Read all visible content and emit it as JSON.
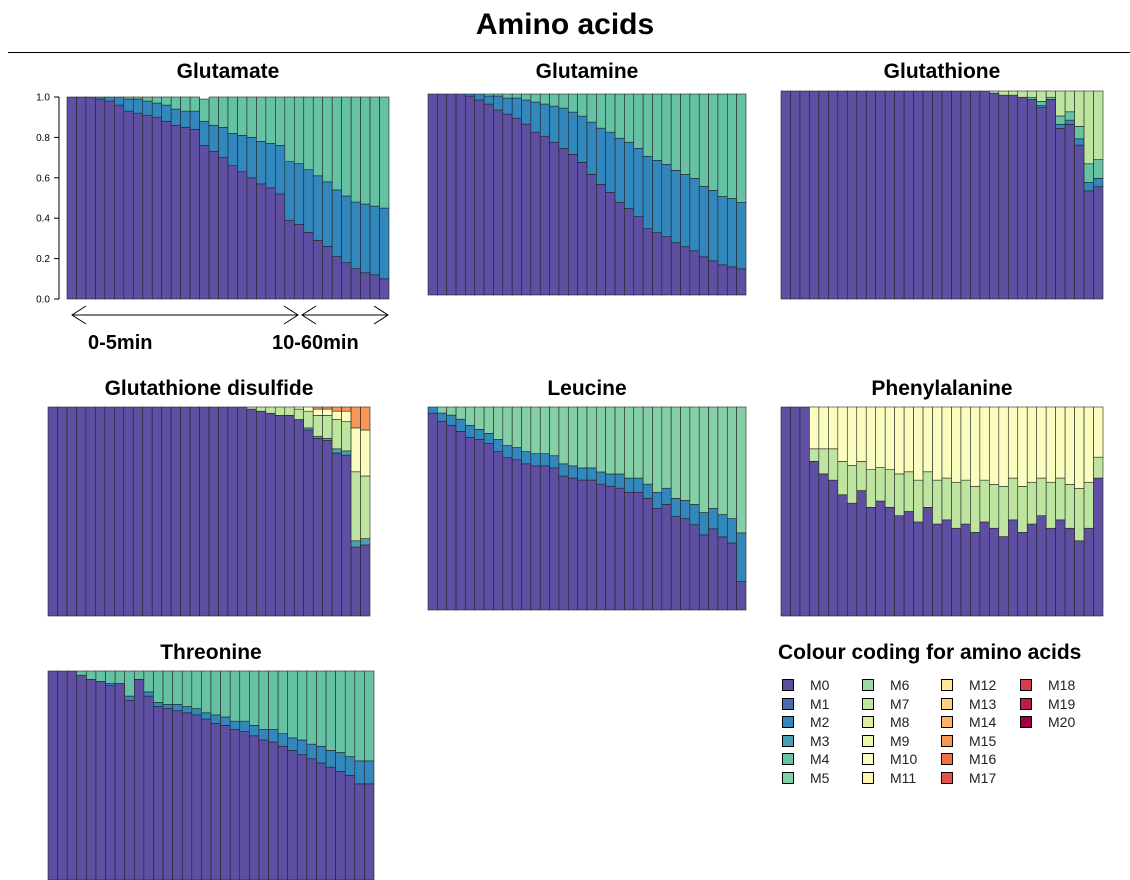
{
  "title": "Amino acids",
  "colors": {
    "M0": "#5e4fa2",
    "M1": "#4b6bb0",
    "M2": "#3288bd",
    "M3": "#489fb2",
    "M4": "#66c2a5",
    "M5": "#84cfa5",
    "M6": "#a0d8a4",
    "M7": "#bee5a0",
    "M8": "#dcf09e",
    "M9": "#eef8a7",
    "M10": "#fbfdbf",
    "M11": "#fff4b3",
    "M12": "#fee695",
    "M13": "#fdd07e",
    "M14": "#fdb466",
    "M15": "#f99653",
    "M16": "#f46d43",
    "M17": "#e5524a",
    "M18": "#d53e4f",
    "M19": "#b8204b",
    "M20": "#9e0142"
  },
  "annotations": {
    "period_1": "0-5min",
    "period_2": "10-60min"
  },
  "legend": {
    "title": "Colour coding for amino acids",
    "items": [
      "M0",
      "M1",
      "M2",
      "M3",
      "M4",
      "M5",
      "M6",
      "M7",
      "M8",
      "M9",
      "M10",
      "M11",
      "M12",
      "M13",
      "M14",
      "M15",
      "M16",
      "M17",
      "M18",
      "M19",
      "M20"
    ]
  },
  "chart_data": [
    {
      "type": "bar",
      "stacked": true,
      "title": "Glutamate",
      "ylim": [
        0,
        1
      ],
      "yticks": [
        "0.0",
        "0.2",
        "0.4",
        "0.6",
        "0.8",
        "1.0"
      ],
      "n_bars": 34,
      "series": [
        {
          "name": "M0",
          "values": [
            1,
            1,
            1,
            0.99,
            0.98,
            0.96,
            0.93,
            0.92,
            0.91,
            0.9,
            0.88,
            0.86,
            0.85,
            0.84,
            0.76,
            0.73,
            0.7,
            0.66,
            0.63,
            0.6,
            0.57,
            0.55,
            0.52,
            0.39,
            0.37,
            0.33,
            0.29,
            0.26,
            0.21,
            0.18,
            0.15,
            0.13,
            0.12,
            0.1
          ]
        },
        {
          "name": "M2",
          "values": [
            0,
            0,
            0,
            0.01,
            0.02,
            0.04,
            0.06,
            0.07,
            0.07,
            0.07,
            0.08,
            0.08,
            0.08,
            0.09,
            0.12,
            0.13,
            0.15,
            0.16,
            0.18,
            0.2,
            0.21,
            0.22,
            0.24,
            0.29,
            0.3,
            0.31,
            0.32,
            0.32,
            0.33,
            0.33,
            0.33,
            0.34,
            0.34,
            0.35
          ]
        },
        {
          "name": "M4",
          "values": [
            0,
            0,
            0,
            0,
            0,
            0,
            0.01,
            0.01,
            0.02,
            0.03,
            0.04,
            0.06,
            0.07,
            0.07,
            0.11,
            0.14,
            0.15,
            0.18,
            0.19,
            0.2,
            0.22,
            0.23,
            0.24,
            0.32,
            0.33,
            0.36,
            0.39,
            0.42,
            0.46,
            0.49,
            0.52,
            0.53,
            0.54,
            0.55
          ]
        }
      ]
    },
    {
      "type": "bar",
      "stacked": true,
      "title": "Glutamine",
      "n_bars": 34,
      "series": [
        {
          "name": "M0",
          "values": [
            1,
            1,
            1,
            1,
            0.99,
            0.97,
            0.95,
            0.92,
            0.9,
            0.88,
            0.85,
            0.81,
            0.79,
            0.76,
            0.73,
            0.7,
            0.66,
            0.6,
            0.55,
            0.51,
            0.46,
            0.43,
            0.39,
            0.33,
            0.31,
            0.29,
            0.26,
            0.24,
            0.22,
            0.19,
            0.17,
            0.15,
            0.14,
            0.13
          ]
        },
        {
          "name": "M2",
          "values": [
            0,
            0,
            0,
            0,
            0.01,
            0.03,
            0.04,
            0.07,
            0.08,
            0.1,
            0.12,
            0.15,
            0.16,
            0.18,
            0.2,
            0.21,
            0.23,
            0.26,
            0.28,
            0.3,
            0.32,
            0.33,
            0.34,
            0.36,
            0.36,
            0.36,
            0.36,
            0.36,
            0.36,
            0.35,
            0.35,
            0.34,
            0.34,
            0.33
          ]
        },
        {
          "name": "M4",
          "values": [
            0,
            0,
            0,
            0,
            0,
            0,
            0.01,
            0.01,
            0.02,
            0.02,
            0.03,
            0.04,
            0.05,
            0.06,
            0.07,
            0.09,
            0.11,
            0.14,
            0.17,
            0.19,
            0.22,
            0.24,
            0.27,
            0.31,
            0.33,
            0.35,
            0.38,
            0.4,
            0.42,
            0.46,
            0.48,
            0.51,
            0.52,
            0.54
          ]
        }
      ]
    },
    {
      "type": "bar",
      "stacked": true,
      "title": "Glutathione",
      "n_bars": 34,
      "series": [
        {
          "name": "M0",
          "values": [
            1,
            1,
            1,
            1,
            1,
            1,
            1,
            1,
            1,
            1,
            1,
            1,
            1,
            1,
            1,
            1,
            1,
            1,
            1,
            1,
            1,
            1,
            0.99,
            0.98,
            0.98,
            0.97,
            0.96,
            0.92,
            0.96,
            0.82,
            0.84,
            0.74,
            0.52,
            0.54
          ]
        },
        {
          "name": "M2",
          "values": [
            0,
            0,
            0,
            0,
            0,
            0,
            0,
            0,
            0,
            0,
            0,
            0,
            0,
            0,
            0,
            0,
            0,
            0,
            0,
            0,
            0,
            0,
            0,
            0,
            0,
            0,
            0,
            0.01,
            0,
            0.02,
            0.02,
            0.03,
            0.04,
            0.04
          ]
        },
        {
          "name": "M4",
          "values": [
            0,
            0,
            0,
            0,
            0,
            0,
            0,
            0,
            0,
            0,
            0,
            0,
            0,
            0,
            0,
            0,
            0,
            0,
            0,
            0,
            0,
            0,
            0,
            0,
            0,
            0,
            0.01,
            0.02,
            0.01,
            0.04,
            0.04,
            0.06,
            0.09,
            0.09
          ]
        },
        {
          "name": "M7",
          "values": [
            0,
            0,
            0,
            0,
            0,
            0,
            0,
            0,
            0,
            0,
            0,
            0,
            0,
            0,
            0,
            0,
            0,
            0,
            0,
            0,
            0,
            0,
            0.01,
            0.02,
            0.02,
            0.03,
            0.03,
            0.05,
            0.03,
            0.12,
            0.1,
            0.17,
            0.35,
            0.33
          ]
        }
      ]
    },
    {
      "type": "bar",
      "stacked": true,
      "title": "Glutathione disulfide",
      "n_bars": 34,
      "series": [
        {
          "name": "M0",
          "values": [
            1,
            1,
            1,
            1,
            1,
            1,
            1,
            1,
            1,
            1,
            1,
            1,
            1,
            1,
            1,
            1,
            1,
            1,
            1,
            1,
            1,
            0.99,
            0.98,
            0.97,
            0.96,
            0.96,
            0.94,
            0.89,
            0.85,
            0.84,
            0.78,
            0.77,
            0.33,
            0.34
          ]
        },
        {
          "name": "M3",
          "values": [
            0,
            0,
            0,
            0,
            0,
            0,
            0,
            0,
            0,
            0,
            0,
            0,
            0,
            0,
            0,
            0,
            0,
            0,
            0,
            0,
            0,
            0,
            0,
            0,
            0,
            0,
            0,
            0.01,
            0.01,
            0.01,
            0.02,
            0.02,
            0.03,
            0.03
          ]
        },
        {
          "name": "M7",
          "values": [
            0,
            0,
            0,
            0,
            0,
            0,
            0,
            0,
            0,
            0,
            0,
            0,
            0,
            0,
            0,
            0,
            0,
            0,
            0,
            0,
            0,
            0.01,
            0.02,
            0.03,
            0.04,
            0.04,
            0.05,
            0.08,
            0.1,
            0.11,
            0.14,
            0.14,
            0.33,
            0.3
          ]
        },
        {
          "name": "M10",
          "values": [
            0,
            0,
            0,
            0,
            0,
            0,
            0,
            0,
            0,
            0,
            0,
            0,
            0,
            0,
            0,
            0,
            0,
            0,
            0,
            0,
            0,
            0,
            0,
            0,
            0,
            0,
            0.01,
            0.02,
            0.03,
            0.03,
            0.04,
            0.05,
            0.21,
            0.22
          ]
        },
        {
          "name": "M15",
          "values": [
            0,
            0,
            0,
            0,
            0,
            0,
            0,
            0,
            0,
            0,
            0,
            0,
            0,
            0,
            0,
            0,
            0,
            0,
            0,
            0,
            0,
            0,
            0,
            0,
            0,
            0,
            0,
            0,
            0.01,
            0.01,
            0.02,
            0.02,
            0.1,
            0.11
          ]
        }
      ]
    },
    {
      "type": "bar",
      "stacked": true,
      "title": "Leucine",
      "n_bars": 34,
      "series": [
        {
          "name": "M0",
          "values": [
            0.97,
            0.93,
            0.91,
            0.88,
            0.85,
            0.84,
            0.82,
            0.78,
            0.75,
            0.74,
            0.72,
            0.71,
            0.71,
            0.7,
            0.66,
            0.65,
            0.64,
            0.64,
            0.62,
            0.61,
            0.6,
            0.58,
            0.58,
            0.55,
            0.5,
            0.52,
            0.46,
            0.45,
            0.42,
            0.37,
            0.4,
            0.36,
            0.33,
            0.14
          ]
        },
        {
          "name": "M2",
          "values": [
            0.03,
            0.04,
            0.05,
            0.06,
            0.06,
            0.05,
            0.05,
            0.06,
            0.06,
            0.06,
            0.06,
            0.06,
            0.06,
            0.06,
            0.06,
            0.06,
            0.06,
            0.06,
            0.06,
            0.06,
            0.07,
            0.07,
            0.07,
            0.07,
            0.08,
            0.08,
            0.09,
            0.09,
            0.1,
            0.11,
            0.1,
            0.11,
            0.12,
            0.24
          ]
        },
        {
          "name": "M5",
          "values": [
            0,
            0.03,
            0.04,
            0.06,
            0.09,
            0.11,
            0.13,
            0.16,
            0.19,
            0.2,
            0.22,
            0.23,
            0.23,
            0.24,
            0.28,
            0.29,
            0.3,
            0.3,
            0.32,
            0.33,
            0.33,
            0.35,
            0.35,
            0.38,
            0.42,
            0.4,
            0.45,
            0.46,
            0.48,
            0.52,
            0.5,
            0.53,
            0.55,
            0.62
          ]
        }
      ]
    },
    {
      "type": "bar",
      "stacked": true,
      "title": "Phenylalanine",
      "n_bars": 34,
      "series": [
        {
          "name": "M0",
          "values": [
            1,
            1,
            1,
            0.74,
            0.68,
            0.65,
            0.58,
            0.54,
            0.6,
            0.52,
            0.55,
            0.52,
            0.48,
            0.5,
            0.45,
            0.52,
            0.44,
            0.46,
            0.42,
            0.44,
            0.4,
            0.45,
            0.42,
            0.38,
            0.46,
            0.4,
            0.44,
            0.48,
            0.42,
            0.46,
            0.42,
            0.36,
            0.42,
            0.66
          ]
        },
        {
          "name": "M7",
          "values": [
            0,
            0,
            0,
            0.06,
            0.12,
            0.15,
            0.16,
            0.18,
            0.14,
            0.18,
            0.16,
            0.18,
            0.2,
            0.19,
            0.2,
            0.17,
            0.21,
            0.2,
            0.22,
            0.21,
            0.22,
            0.2,
            0.21,
            0.24,
            0.2,
            0.22,
            0.2,
            0.18,
            0.22,
            0.2,
            0.21,
            0.25,
            0.22,
            0.1
          ]
        },
        {
          "name": "M10",
          "values": [
            0,
            0,
            0,
            0.2,
            0.2,
            0.2,
            0.26,
            0.28,
            0.26,
            0.3,
            0.29,
            0.3,
            0.32,
            0.31,
            0.35,
            0.31,
            0.35,
            0.34,
            0.36,
            0.35,
            0.38,
            0.35,
            0.37,
            0.38,
            0.34,
            0.38,
            0.36,
            0.34,
            0.36,
            0.34,
            0.37,
            0.39,
            0.36,
            0.24
          ]
        }
      ]
    },
    {
      "type": "bar",
      "stacked": true,
      "title": "Threonine",
      "n_bars": 34,
      "series": [
        {
          "name": "M0",
          "values": [
            1,
            1,
            1,
            0.98,
            0.96,
            0.95,
            0.93,
            0.94,
            0.86,
            0.96,
            0.88,
            0.83,
            0.82,
            0.81,
            0.8,
            0.79,
            0.77,
            0.75,
            0.74,
            0.72,
            0.71,
            0.69,
            0.67,
            0.66,
            0.64,
            0.62,
            0.6,
            0.58,
            0.56,
            0.54,
            0.52,
            0.5,
            0.46,
            0.46
          ]
        },
        {
          "name": "M2",
          "values": [
            0,
            0,
            0,
            0,
            0,
            0,
            0.01,
            0,
            0.02,
            0,
            0.02,
            0.02,
            0.02,
            0.03,
            0.03,
            0.03,
            0.03,
            0.04,
            0.04,
            0.04,
            0.05,
            0.05,
            0.05,
            0.06,
            0.06,
            0.06,
            0.07,
            0.07,
            0.08,
            0.08,
            0.09,
            0.09,
            0.11,
            0.11
          ]
        },
        {
          "name": "M4",
          "values": [
            0,
            0,
            0,
            0.02,
            0.04,
            0.05,
            0.06,
            0.06,
            0.12,
            0.04,
            0.1,
            0.15,
            0.16,
            0.16,
            0.17,
            0.18,
            0.2,
            0.21,
            0.22,
            0.24,
            0.24,
            0.26,
            0.28,
            0.28,
            0.3,
            0.32,
            0.33,
            0.35,
            0.36,
            0.38,
            0.39,
            0.41,
            0.43,
            0.43
          ]
        }
      ]
    }
  ]
}
